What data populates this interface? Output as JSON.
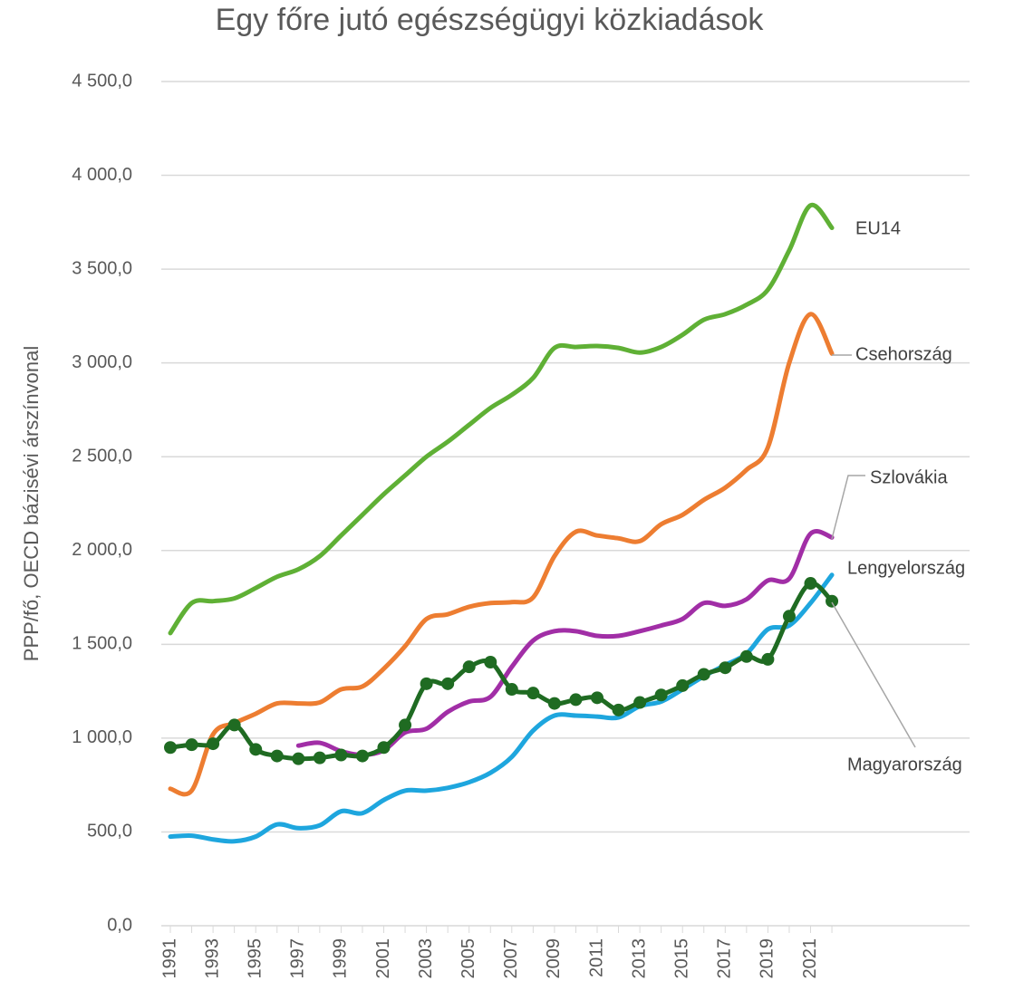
{
  "chart_data": {
    "type": "line",
    "title": "Egy főre jutó egészségügyi közkiadások",
    "y_label": "PPP/fő, OECD bázisévi árszínvonal",
    "categories": [
      "1991",
      null,
      "1993",
      null,
      "1995",
      null,
      "1997",
      null,
      "1999",
      null,
      "2001",
      null,
      "2003",
      null,
      "2005",
      null,
      "2007",
      null,
      "2009",
      null,
      "2011",
      null,
      "2013",
      null,
      "2015",
      null,
      "2017",
      null,
      "2019",
      null,
      "2021",
      null
    ],
    "ylim": [
      0,
      4500
    ],
    "yticks": [
      {
        "value": 0,
        "label": "0,0"
      },
      {
        "value": 500,
        "label": "500,0"
      },
      {
        "value": 1000,
        "label": "1 000,0"
      },
      {
        "value": 1500,
        "label": "1 500,0"
      },
      {
        "value": 2000,
        "label": "2 000,0"
      },
      {
        "value": 2500,
        "label": "2 500,0"
      },
      {
        "value": 3000,
        "label": "3 000,0"
      },
      {
        "value": 3500,
        "label": "3 500,0"
      },
      {
        "value": 4000,
        "label": "4 000,0"
      },
      {
        "value": 4500,
        "label": "4 500,0"
      }
    ],
    "grid": true,
    "series": [
      {
        "name": "EU14",
        "color": "#5fb035",
        "values": [
          1560,
          1720,
          1730,
          1745,
          1800,
          1860,
          1900,
          1970,
          2080,
          2190,
          2300,
          2400,
          2500,
          2580,
          2670,
          2760,
          2830,
          2920,
          3080,
          3085,
          3090,
          3080,
          3055,
          3085,
          3150,
          3230,
          3260,
          3310,
          3390,
          3600,
          3840,
          3720
        ]
      },
      {
        "name": "Csehország",
        "color": "#ed7d31",
        "values": [
          730,
          720,
          1020,
          1080,
          1130,
          1185,
          1185,
          1190,
          1260,
          1275,
          1370,
          1490,
          1635,
          1660,
          1700,
          1720,
          1725,
          1750,
          1970,
          2100,
          2080,
          2065,
          2050,
          2140,
          2190,
          2270,
          2335,
          2430,
          2550,
          3000,
          3260,
          3050
        ]
      },
      {
        "name": "Szlovákia",
        "color": "#a12ea6",
        "values": [
          null,
          null,
          null,
          null,
          null,
          null,
          960,
          975,
          930,
          910,
          935,
          1030,
          1050,
          1140,
          1195,
          1220,
          1380,
          1520,
          1570,
          1570,
          1545,
          1545,
          1570,
          1600,
          1635,
          1720,
          1705,
          1740,
          1840,
          1850,
          2090,
          2070
        ]
      },
      {
        "name": "Lengyelország",
        "color": "#1ea6de",
        "values": [
          475,
          480,
          460,
          450,
          475,
          540,
          520,
          535,
          610,
          600,
          670,
          720,
          720,
          735,
          765,
          815,
          900,
          1040,
          1120,
          1120,
          1115,
          1110,
          1170,
          1195,
          1260,
          1330,
          1390,
          1450,
          1580,
          1600,
          1720,
          1870
        ]
      },
      {
        "name": "Magyarország",
        "color": "#1f6b22",
        "markers": true,
        "values": [
          950,
          965,
          970,
          1070,
          940,
          905,
          890,
          895,
          910,
          905,
          950,
          1070,
          1290,
          1290,
          1380,
          1405,
          1260,
          1240,
          1185,
          1205,
          1215,
          1150,
          1190,
          1230,
          1280,
          1340,
          1375,
          1435,
          1420,
          1650,
          1825,
          1730
        ]
      }
    ]
  }
}
